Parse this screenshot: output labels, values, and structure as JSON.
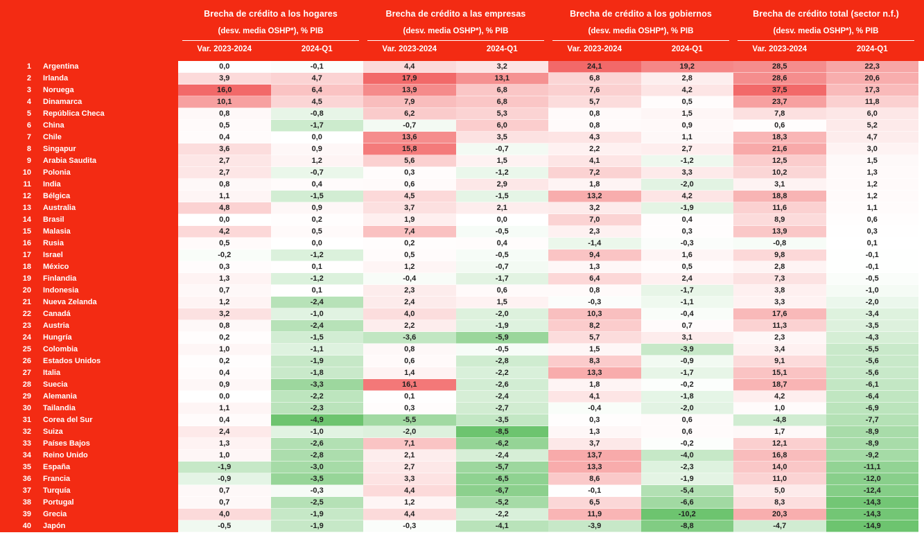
{
  "theme": {
    "brand_red": "#f32b13",
    "cell_red_max": "#f26969",
    "cell_green_min": "#6dc46f",
    "cell_neutral": "#ffffff",
    "header_text_color": "#ffffff",
    "value_text_color": "#1f1f1f"
  },
  "chart_data": {
    "type": "heatmap",
    "decimal_separator": ",",
    "color_scale": "per column-group: white at 0, full red at group max, full green at group min",
    "column_groups": [
      {
        "title": "Brecha de crédito a los hogares",
        "subtitle": "(desv. media OSHP*), % PIB",
        "columns": [
          "Var. 2023-2024",
          "2024-Q1"
        ]
      },
      {
        "title": "Brecha de crédito a las empresas",
        "subtitle": "(desv. media OSHP*), % PIB",
        "columns": [
          "Var. 2023-2024",
          "2024-Q1"
        ]
      },
      {
        "title": "Brecha de crédito a los gobiernos",
        "subtitle": "(desv. media OSHP*), % PIB",
        "columns": [
          "Var. 2023-2024",
          "2024-Q1"
        ]
      },
      {
        "title": "Brecha de crédito total (sector n.f.)",
        "subtitle": "(desv. media OSHP*), % PIB",
        "columns": [
          "Var. 2023-2024",
          "2024-Q1"
        ]
      }
    ],
    "rows": [
      {
        "rank": 1,
        "country": "Argentina",
        "values": [
          0.0,
          -0.1,
          4.4,
          3.2,
          24.1,
          19.2,
          28.5,
          22.3
        ]
      },
      {
        "rank": 2,
        "country": "Irlanda",
        "values": [
          3.9,
          4.7,
          17.9,
          13.1,
          6.8,
          2.8,
          28.6,
          20.6
        ]
      },
      {
        "rank": 3,
        "country": "Noruega",
        "values": [
          16.0,
          6.4,
          13.9,
          6.8,
          7.6,
          4.2,
          37.5,
          17.3
        ]
      },
      {
        "rank": 4,
        "country": "Dinamarca",
        "values": [
          10.1,
          4.5,
          7.9,
          6.8,
          5.7,
          0.5,
          23.7,
          11.8
        ]
      },
      {
        "rank": 5,
        "country": "República Checa",
        "values": [
          0.8,
          -0.8,
          6.2,
          5.3,
          0.8,
          1.5,
          7.8,
          6.0
        ]
      },
      {
        "rank": 6,
        "country": "China",
        "values": [
          0.5,
          -1.7,
          -0.7,
          6.0,
          0.8,
          0.9,
          0.6,
          5.2
        ]
      },
      {
        "rank": 7,
        "country": "Chile",
        "values": [
          0.4,
          0.0,
          13.6,
          3.5,
          4.3,
          1.1,
          18.3,
          4.7
        ]
      },
      {
        "rank": 8,
        "country": "Singapur",
        "values": [
          3.6,
          0.9,
          15.8,
          -0.7,
          2.2,
          2.7,
          21.6,
          3.0
        ]
      },
      {
        "rank": 9,
        "country": "Arabia Saudita",
        "values": [
          2.7,
          1.2,
          5.6,
          1.5,
          4.1,
          -1.2,
          12.5,
          1.5
        ]
      },
      {
        "rank": 10,
        "country": "Polonia",
        "values": [
          2.7,
          -0.7,
          0.3,
          -1.2,
          7.2,
          3.3,
          10.2,
          1.3
        ]
      },
      {
        "rank": 11,
        "country": "India",
        "values": [
          0.8,
          0.4,
          0.6,
          2.9,
          1.8,
          -2.0,
          3.1,
          1.2
        ]
      },
      {
        "rank": 12,
        "country": "Bélgica",
        "values": [
          1.1,
          -1.5,
          4.5,
          -1.5,
          13.2,
          4.2,
          18.8,
          1.2
        ]
      },
      {
        "rank": 13,
        "country": "Australia",
        "values": [
          4.8,
          0.9,
          3.7,
          2.1,
          3.2,
          -1.9,
          11.6,
          1.1
        ]
      },
      {
        "rank": 14,
        "country": "Brasil",
        "values": [
          0.0,
          0.2,
          1.9,
          0.0,
          7.0,
          0.4,
          8.9,
          0.6
        ]
      },
      {
        "rank": 15,
        "country": "Malasia",
        "values": [
          4.2,
          0.5,
          7.4,
          -0.5,
          2.3,
          0.3,
          13.9,
          0.3
        ]
      },
      {
        "rank": 16,
        "country": "Rusia",
        "values": [
          0.5,
          0.0,
          0.2,
          0.4,
          -1.4,
          -0.3,
          -0.8,
          0.1
        ]
      },
      {
        "rank": 17,
        "country": "Israel",
        "values": [
          -0.2,
          -1.2,
          0.5,
          -0.5,
          9.4,
          1.6,
          9.8,
          -0.1
        ]
      },
      {
        "rank": 18,
        "country": "México",
        "values": [
          0.3,
          0.1,
          1.2,
          -0.7,
          1.3,
          0.5,
          2.8,
          -0.1
        ]
      },
      {
        "rank": 19,
        "country": "Finlandia",
        "values": [
          1.3,
          -1.2,
          -0.4,
          -1.7,
          6.4,
          2.4,
          7.3,
          -0.5
        ]
      },
      {
        "rank": 20,
        "country": "Indonesia",
        "values": [
          0.7,
          0.1,
          2.3,
          0.6,
          0.8,
          -1.7,
          3.8,
          -1.0
        ]
      },
      {
        "rank": 21,
        "country": "Nueva Zelanda",
        "values": [
          1.2,
          -2.4,
          2.4,
          1.5,
          -0.3,
          -1.1,
          3.3,
          -2.0
        ]
      },
      {
        "rank": 22,
        "country": "Canadá",
        "values": [
          3.2,
          -1.0,
          4.0,
          -2.0,
          10.3,
          -0.4,
          17.6,
          -3.4
        ]
      },
      {
        "rank": 23,
        "country": "Austria",
        "values": [
          0.8,
          -2.4,
          2.2,
          -1.9,
          8.2,
          0.7,
          11.3,
          -3.5
        ]
      },
      {
        "rank": 24,
        "country": "Hungría",
        "values": [
          0.2,
          -1.5,
          -3.6,
          -5.9,
          5.7,
          3.1,
          2.3,
          -4.3
        ]
      },
      {
        "rank": 25,
        "country": "Colombia",
        "values": [
          1.0,
          -1.1,
          0.8,
          -0.5,
          1.5,
          -3.9,
          3.4,
          -5.5
        ]
      },
      {
        "rank": 26,
        "country": "Estados Unidos",
        "values": [
          0.2,
          -1.9,
          0.6,
          -2.8,
          8.3,
          -0.9,
          9.1,
          -5.6
        ]
      },
      {
        "rank": 27,
        "country": "Italia",
        "values": [
          0.4,
          -1.8,
          1.4,
          -2.2,
          13.3,
          -1.7,
          15.1,
          -5.6
        ]
      },
      {
        "rank": 28,
        "country": "Suecia",
        "values": [
          0.9,
          -3.3,
          16.1,
          -2.6,
          1.8,
          -0.2,
          18.7,
          -6.1
        ]
      },
      {
        "rank": 29,
        "country": "Alemania",
        "values": [
          0.0,
          -2.2,
          0.1,
          -2.4,
          4.1,
          -1.8,
          4.2,
          -6.4
        ]
      },
      {
        "rank": 30,
        "country": "Tailandia",
        "values": [
          1.1,
          -2.3,
          0.3,
          -2.7,
          -0.4,
          -2.0,
          1.0,
          -6.9
        ]
      },
      {
        "rank": 31,
        "country": "Corea del Sur",
        "values": [
          0.4,
          -4.9,
          -5.5,
          -3.5,
          0.3,
          0.6,
          -4.8,
          -7.7
        ]
      },
      {
        "rank": 32,
        "country": "Suiza",
        "values": [
          2.4,
          -1.0,
          -2.0,
          -8.5,
          1.3,
          0.6,
          1.7,
          -8.9
        ]
      },
      {
        "rank": 33,
        "country": "Países Bajos",
        "values": [
          1.3,
          -2.6,
          7.1,
          -6.2,
          3.7,
          -0.2,
          12.1,
          -8.9
        ]
      },
      {
        "rank": 34,
        "country": "Reino Unido",
        "values": [
          1.0,
          -2.8,
          2.1,
          -2.4,
          13.7,
          -4.0,
          16.8,
          -9.2
        ]
      },
      {
        "rank": 35,
        "country": "España",
        "values": [
          -1.9,
          -3.0,
          2.7,
          -5.7,
          13.3,
          -2.3,
          14.0,
          -11.1
        ]
      },
      {
        "rank": 36,
        "country": "Francia",
        "values": [
          -0.9,
          -3.5,
          3.3,
          -6.5,
          8.6,
          -1.9,
          11.0,
          -12.0
        ]
      },
      {
        "rank": 37,
        "country": "Turquía",
        "values": [
          0.7,
          -0.3,
          4.4,
          -6.7,
          -0.1,
          -5.4,
          5.0,
          -12.4
        ]
      },
      {
        "rank": 38,
        "country": "Portugal",
        "values": [
          0.7,
          -2.5,
          1.2,
          -5.2,
          6.5,
          -6.6,
          8.3,
          -14.3
        ]
      },
      {
        "rank": 39,
        "country": "Grecia",
        "values": [
          4.0,
          -1.9,
          4.4,
          -2.2,
          11.9,
          -10.2,
          20.3,
          -14.3
        ]
      },
      {
        "rank": 40,
        "country": "Japón",
        "values": [
          -0.5,
          -1.9,
          -0.3,
          -4.1,
          -3.9,
          -8.8,
          -4.7,
          -14.9
        ]
      }
    ]
  }
}
